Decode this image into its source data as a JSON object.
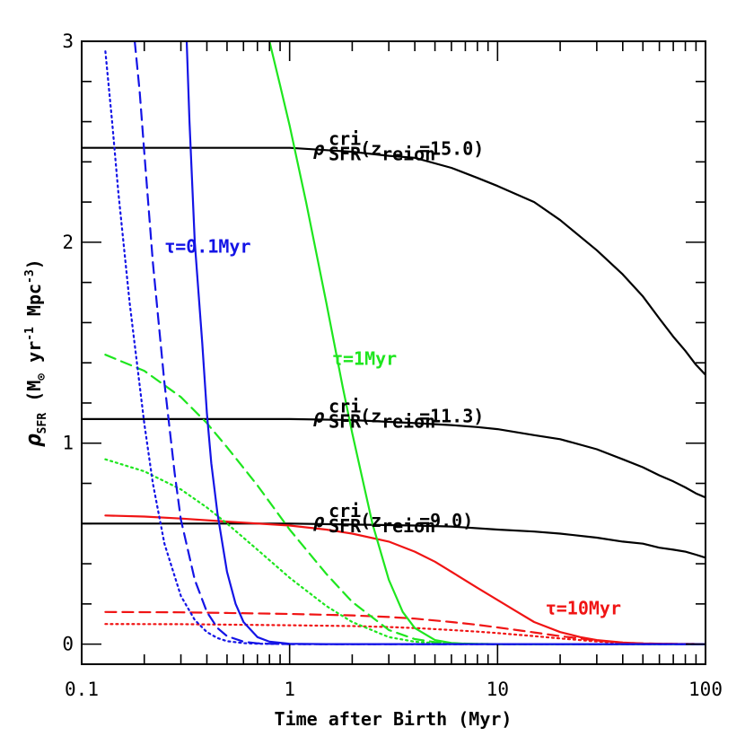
{
  "chart_data": {
    "type": "line",
    "xscale": "log",
    "xlim": [
      0.1,
      100
    ],
    "ylim": [
      -0.1,
      3
    ],
    "xlabel": "Time after Birth (Myr)",
    "ylabel": {
      "rho": "ρ",
      "sub": "SFR",
      "units_pre": " (M",
      "sun": "⊙",
      "units_mid": " yr",
      "exp1": "-1",
      "units_mid2": " Mpc",
      "exp2": "-3",
      "units_post": ")"
    },
    "xticks": [
      {
        "v": 0.1,
        "label": "0.1"
      },
      {
        "v": 1,
        "label": "1"
      },
      {
        "v": 10,
        "label": "10"
      },
      {
        "v": 100,
        "label": "100"
      }
    ],
    "yticks": [
      {
        "v": 0,
        "label": "0"
      },
      {
        "v": 1,
        "label": "1"
      },
      {
        "v": 2,
        "label": "2"
      },
      {
        "v": 3,
        "label": "3"
      }
    ],
    "colors": {
      "critical": "#000000",
      "tau_0_1": "#1414e6",
      "tau_1": "#1ee61e",
      "tau_10": "#f01414"
    },
    "annotations": [
      {
        "id": "crit-15",
        "rho": "ρ",
        "sup": "cri",
        "sub": "SFR",
        "paren_open": "(z",
        "zsub": "reion",
        "val": "=15.0)",
        "color": "#000000",
        "x": 1.3,
        "y": 2.47
      },
      {
        "id": "crit-11",
        "rho": "ρ",
        "sup": "cri",
        "sub": "SFR",
        "paren_open": "(z",
        "zsub": "reion",
        "val": "=11.3)",
        "color": "#000000",
        "x": 1.3,
        "y": 1.14
      },
      {
        "id": "crit-9",
        "rho": "ρ",
        "sup": "cri",
        "sub": "SFR",
        "paren_open": "(z",
        "zsub": "reion",
        "val": "=9.0)",
        "color": "#000000",
        "x": 1.3,
        "y": 0.62
      }
    ],
    "tau_labels": [
      {
        "id": "tau-0-1",
        "text": "τ=0.1Myr",
        "color": "#1414e6",
        "x": 0.25,
        "y": 1.98
      },
      {
        "id": "tau-1",
        "text": "τ=1Myr",
        "color": "#1ee61e",
        "x": 1.6,
        "y": 1.42
      },
      {
        "id": "tau-10",
        "text": "τ=10Myr",
        "color": "#f01414",
        "x": 17,
        "y": 0.18
      }
    ],
    "series": [
      {
        "id": "crit-15",
        "color": "#000000",
        "dash": "solid",
        "x": [
          0.1,
          0.5,
          1,
          2,
          3,
          4,
          6,
          8,
          10,
          15,
          20,
          30,
          40,
          50,
          60,
          70,
          80,
          90,
          100
        ],
        "y": [
          2.47,
          2.47,
          2.47,
          2.45,
          2.43,
          2.42,
          2.37,
          2.32,
          2.28,
          2.2,
          2.11,
          1.96,
          1.84,
          1.73,
          1.62,
          1.53,
          1.46,
          1.39,
          1.34
        ]
      },
      {
        "id": "crit-11",
        "color": "#000000",
        "dash": "solid",
        "x": [
          0.1,
          0.5,
          1,
          2,
          4,
          6,
          8,
          10,
          15,
          20,
          30,
          40,
          50,
          60,
          70,
          80,
          90,
          100
        ],
        "y": [
          1.12,
          1.12,
          1.12,
          1.115,
          1.1,
          1.09,
          1.08,
          1.07,
          1.04,
          1.02,
          0.97,
          0.92,
          0.88,
          0.84,
          0.81,
          0.78,
          0.75,
          0.73
        ]
      },
      {
        "id": "crit-9",
        "color": "#000000",
        "dash": "solid",
        "x": [
          0.1,
          0.5,
          1,
          2,
          4,
          6,
          10,
          15,
          20,
          30,
          40,
          50,
          60,
          70,
          80,
          90,
          100
        ],
        "y": [
          0.6,
          0.6,
          0.6,
          0.595,
          0.59,
          0.585,
          0.57,
          0.56,
          0.55,
          0.53,
          0.51,
          0.5,
          0.48,
          0.47,
          0.46,
          0.445,
          0.43
        ]
      },
      {
        "id": "tau-10-solid",
        "color": "#f01414",
        "dash": "solid",
        "x": [
          0.13,
          0.2,
          0.3,
          0.5,
          1,
          1.5,
          2,
          3,
          4,
          5,
          6,
          8,
          10,
          12,
          15,
          20,
          25,
          30,
          40,
          50,
          70,
          100
        ],
        "y": [
          0.64,
          0.635,
          0.625,
          0.61,
          0.59,
          0.57,
          0.55,
          0.51,
          0.46,
          0.41,
          0.36,
          0.28,
          0.22,
          0.17,
          0.11,
          0.06,
          0.035,
          0.02,
          0.008,
          0.003,
          0.001,
          0
        ]
      },
      {
        "id": "tau-10-dashed",
        "color": "#f01414",
        "dash": "dashed",
        "x": [
          0.13,
          0.3,
          0.5,
          1,
          2,
          3,
          4,
          6,
          8,
          10,
          15,
          20,
          30,
          40,
          50,
          70,
          100
        ],
        "y": [
          0.16,
          0.158,
          0.155,
          0.15,
          0.143,
          0.135,
          0.127,
          0.11,
          0.096,
          0.083,
          0.058,
          0.04,
          0.018,
          0.007,
          0.003,
          0.001,
          0
        ]
      },
      {
        "id": "tau-10-dotted",
        "color": "#f01414",
        "dash": "dotted",
        "x": [
          0.13,
          0.3,
          0.5,
          1,
          2,
          3,
          4,
          6,
          8,
          10,
          15,
          20,
          30,
          40,
          50,
          70,
          100
        ],
        "y": [
          0.1,
          0.099,
          0.097,
          0.094,
          0.09,
          0.085,
          0.08,
          0.07,
          0.062,
          0.055,
          0.04,
          0.028,
          0.013,
          0.005,
          0.002,
          0.001,
          0
        ]
      },
      {
        "id": "tau-1-solid",
        "color": "#1ee61e",
        "dash": "solid",
        "x": [
          0.8,
          0.9,
          1,
          1.2,
          1.5,
          1.8,
          2,
          2.5,
          3,
          3.5,
          4,
          5,
          6,
          7,
          8,
          10,
          15,
          100
        ],
        "y": [
          3.0,
          2.78,
          2.58,
          2.2,
          1.7,
          1.28,
          1.05,
          0.6,
          0.32,
          0.16,
          0.08,
          0.02,
          0.006,
          0.002,
          0.001,
          0,
          0,
          0
        ]
      },
      {
        "id": "tau-1-dashed",
        "color": "#1ee61e",
        "dash": "dashed",
        "x": [
          0.13,
          0.2,
          0.3,
          0.4,
          0.5,
          0.7,
          1,
          1.5,
          2,
          3,
          4,
          5,
          6,
          8,
          10,
          15,
          100
        ],
        "y": [
          1.44,
          1.36,
          1.23,
          1.1,
          0.98,
          0.79,
          0.57,
          0.35,
          0.21,
          0.07,
          0.025,
          0.01,
          0.004,
          0.001,
          0,
          0,
          0
        ]
      },
      {
        "id": "tau-1-dotted",
        "color": "#1ee61e",
        "dash": "dotted",
        "x": [
          0.13,
          0.2,
          0.3,
          0.4,
          0.5,
          0.7,
          1,
          1.5,
          2,
          3,
          4,
          5,
          6,
          8,
          10,
          15,
          100
        ],
        "y": [
          0.92,
          0.86,
          0.77,
          0.68,
          0.6,
          0.47,
          0.33,
          0.19,
          0.11,
          0.035,
          0.012,
          0.005,
          0.002,
          0.001,
          0,
          0,
          0
        ]
      },
      {
        "id": "tau-0-1-solid",
        "color": "#1414e6",
        "dash": "solid",
        "x": [
          0.32,
          0.33,
          0.35,
          0.38,
          0.4,
          0.42,
          0.45,
          0.5,
          0.55,
          0.6,
          0.7,
          0.8,
          1,
          1.5,
          100
        ],
        "y": [
          3.0,
          2.6,
          2.0,
          1.5,
          1.15,
          0.9,
          0.65,
          0.36,
          0.2,
          0.11,
          0.035,
          0.012,
          0.002,
          0,
          0
        ]
      },
      {
        "id": "tau-0-1-dashed",
        "color": "#1414e6",
        "dash": "dashed",
        "x": [
          0.18,
          0.19,
          0.2,
          0.22,
          0.25,
          0.28,
          0.3,
          0.35,
          0.4,
          0.45,
          0.5,
          0.6,
          0.7,
          0.8,
          1,
          100
        ],
        "y": [
          3.0,
          2.75,
          2.45,
          1.9,
          1.3,
          0.85,
          0.62,
          0.32,
          0.16,
          0.08,
          0.04,
          0.012,
          0.004,
          0.002,
          0,
          0
        ]
      },
      {
        "id": "tau-0-1-dotted",
        "color": "#1414e6",
        "dash": "dotted",
        "x": [
          0.13,
          0.14,
          0.15,
          0.17,
          0.2,
          0.22,
          0.25,
          0.3,
          0.35,
          0.4,
          0.45,
          0.5,
          0.6,
          0.7,
          1,
          100
        ],
        "y": [
          2.95,
          2.6,
          2.25,
          1.7,
          1.1,
          0.8,
          0.5,
          0.24,
          0.12,
          0.06,
          0.03,
          0.015,
          0.005,
          0.002,
          0,
          0
        ]
      }
    ]
  }
}
